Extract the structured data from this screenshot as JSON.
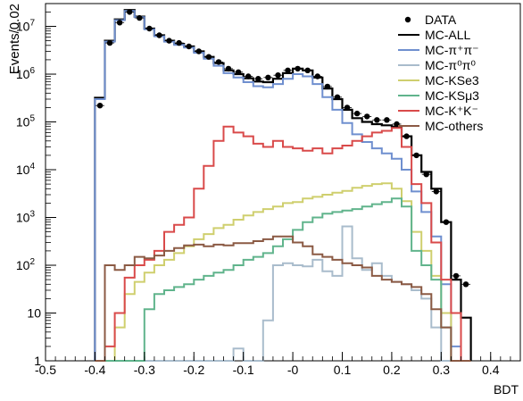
{
  "chart_data": {
    "type": "line",
    "xlabel": "BDT",
    "ylabel": "Events/0.02",
    "xlim": [
      -0.5,
      0.46
    ],
    "ylim": [
      1,
      30000000
    ],
    "yscale": "log",
    "grid": false,
    "legend_position": "top-right",
    "x_ticks": [
      {
        "v": -0.5,
        "label": "-0.5"
      },
      {
        "v": -0.4,
        "label": "-0.4"
      },
      {
        "v": -0.3,
        "label": "-0.3"
      },
      {
        "v": -0.2,
        "label": "-0.2"
      },
      {
        "v": -0.1,
        "label": "-0.1"
      },
      {
        "v": 0.0,
        "label": "-0"
      },
      {
        "v": 0.1,
        "label": "0.1"
      },
      {
        "v": 0.2,
        "label": "0.2"
      },
      {
        "v": 0.3,
        "label": "0.3"
      },
      {
        "v": 0.4,
        "label": "0.4"
      }
    ],
    "y_ticks": [
      {
        "v": 1,
        "base": "1",
        "exp": ""
      },
      {
        "v": 10,
        "base": "10",
        "exp": ""
      },
      {
        "v": 100,
        "base": "10",
        "exp": "2"
      },
      {
        "v": 1000,
        "base": "10",
        "exp": "3"
      },
      {
        "v": 10000,
        "base": "10",
        "exp": "4"
      },
      {
        "v": 100000,
        "base": "10",
        "exp": "5"
      },
      {
        "v": 1000000,
        "base": "10",
        "exp": "6"
      },
      {
        "v": 10000000,
        "base": "10",
        "exp": "7"
      }
    ],
    "bin_edges": [
      -0.4,
      -0.38,
      -0.36,
      -0.34,
      -0.32,
      -0.3,
      -0.28,
      -0.26,
      -0.24,
      -0.22,
      -0.2,
      -0.18,
      -0.16,
      -0.14,
      -0.12,
      -0.1,
      -0.08,
      -0.06,
      -0.04,
      -0.02,
      0.0,
      0.02,
      0.04,
      0.06,
      0.08,
      0.1,
      0.12,
      0.14,
      0.16,
      0.18,
      0.2,
      0.22,
      0.24,
      0.26,
      0.28,
      0.3,
      0.32,
      0.34,
      0.36
    ],
    "legend": [
      {
        "key": "DATA",
        "text": "DATA",
        "sup": [],
        "style": "marker",
        "color": "#000000"
      },
      {
        "key": "MC-ALL",
        "text": "MC-ALL",
        "sup": [],
        "style": "line",
        "color": "#000000"
      },
      {
        "key": "MC-pipi",
        "text": "MC-π⁺π⁻",
        "sup": [],
        "style": "line",
        "color": "#6f8fcf"
      },
      {
        "key": "MC-pi0pi0",
        "text": "MC-π⁰π⁰",
        "sup": [],
        "style": "line",
        "color": "#a9bccc"
      },
      {
        "key": "MC-KSe3",
        "text": "MC-KSe3",
        "sup": [],
        "style": "line",
        "color": "#cfcf6e"
      },
      {
        "key": "MC-KSmu3",
        "text": "MC-KSμ3",
        "sup": [],
        "style": "line",
        "color": "#60b48c"
      },
      {
        "key": "MC-KK",
        "text": "MC-K⁺K⁻",
        "sup": [],
        "style": "line",
        "color": "#d94a4a"
      },
      {
        "key": "MC-others",
        "text": "MC-others",
        "sup": [],
        "style": "line",
        "color": "#8b5a44"
      }
    ],
    "series": [
      {
        "key": "MC-ALL",
        "color": "#000000",
        "width": 2.2,
        "values": [
          320000,
          5000000,
          14000000,
          22000000,
          16000000,
          9000000,
          6500000,
          5000000,
          4300000,
          3800000,
          3000000,
          2300000,
          1700000,
          1200000,
          1000000,
          820000,
          700000,
          680000,
          800000,
          1050000,
          1300000,
          1200000,
          850000,
          500000,
          300000,
          180000,
          120000,
          100000,
          90000,
          85000,
          80000,
          50000,
          20000,
          9000,
          4000,
          800,
          50,
          8
        ]
      },
      {
        "key": "MC-pipi",
        "color": "#6f8fcf",
        "width": 2,
        "values": [
          300000,
          4800000,
          13500000,
          21000000,
          15500000,
          8700000,
          6200000,
          4800000,
          4100000,
          3600000,
          2800000,
          2100000,
          1500000,
          1050000,
          850000,
          680000,
          560000,
          530000,
          620000,
          800000,
          1000000,
          900000,
          620000,
          330000,
          180000,
          95000,
          55000,
          38000,
          28000,
          22000,
          17000,
          10000,
          3500,
          1300,
          400,
          40,
          2,
          1
        ]
      },
      {
        "key": "MC-pi0pi0",
        "color": "#a9bccc",
        "width": 2,
        "values": [
          0.5,
          0.5,
          0.5,
          0.5,
          0.5,
          0.5,
          0.5,
          0.5,
          0.5,
          0.5,
          0.5,
          0.5,
          0.5,
          0.5,
          1.8,
          0.5,
          0.5,
          7,
          100,
          110,
          100,
          95,
          130,
          75,
          60,
          650,
          140,
          80,
          110,
          60,
          45,
          40,
          30,
          20,
          5,
          0.5,
          0.5,
          0.5
        ]
      },
      {
        "key": "MC-KSe3",
        "color": "#cfcf6e",
        "width": 2,
        "values": [
          0.5,
          0.5,
          5,
          25,
          45,
          70,
          100,
          130,
          180,
          250,
          350,
          450,
          600,
          700,
          900,
          1100,
          1300,
          1500,
          1700,
          2000,
          2100,
          2500,
          2700,
          3000,
          3300,
          3600,
          4200,
          4600,
          5000,
          5200,
          4000,
          2200,
          500,
          200,
          60,
          10,
          1,
          0.5
        ]
      },
      {
        "key": "MC-KSmu3",
        "color": "#60b48c",
        "width": 2,
        "values": [
          0.5,
          0.5,
          0.5,
          0.5,
          0.5,
          12,
          25,
          30,
          35,
          40,
          50,
          60,
          70,
          80,
          100,
          130,
          150,
          180,
          250,
          350,
          550,
          800,
          1000,
          1200,
          1300,
          1400,
          1500,
          1700,
          1900,
          2100,
          2500,
          1700,
          200,
          100,
          50,
          5,
          0.5,
          0.5
        ]
      },
      {
        "key": "MC-KK",
        "color": "#d94a4a",
        "width": 2,
        "values": [
          0.5,
          2,
          10,
          55,
          100,
          130,
          200,
          500,
          700,
          1000,
          4000,
          12000,
          40000,
          80000,
          60000,
          50000,
          35000,
          30000,
          40000,
          30000,
          28000,
          25000,
          28000,
          22000,
          28000,
          32000,
          40000,
          50000,
          60000,
          65000,
          75000,
          30000,
          5000,
          2000,
          300,
          50,
          10,
          1
        ]
      },
      {
        "key": "MC-others",
        "color": "#8b5a44",
        "width": 2,
        "values": [
          0.5,
          100,
          80,
          100,
          150,
          140,
          160,
          200,
          230,
          260,
          270,
          250,
          270,
          260,
          290,
          290,
          320,
          350,
          400,
          400,
          300,
          250,
          170,
          150,
          130,
          110,
          100,
          90,
          60,
          50,
          45,
          40,
          35,
          25,
          12,
          5,
          1,
          0.5
        ]
      }
    ],
    "data_points": [
      {
        "x": -0.39,
        "y": 220000
      },
      {
        "x": -0.37,
        "y": 4500000
      },
      {
        "x": -0.35,
        "y": 12000000
      },
      {
        "x": -0.33,
        "y": 20000000
      },
      {
        "x": -0.31,
        "y": 15000000
      },
      {
        "x": -0.29,
        "y": 9000000
      },
      {
        "x": -0.27,
        "y": 6500000
      },
      {
        "x": -0.25,
        "y": 5000000
      },
      {
        "x": -0.23,
        "y": 4500000
      },
      {
        "x": -0.21,
        "y": 3800000
      },
      {
        "x": -0.19,
        "y": 3000000
      },
      {
        "x": -0.17,
        "y": 2300000
      },
      {
        "x": -0.15,
        "y": 1800000
      },
      {
        "x": -0.13,
        "y": 1300000
      },
      {
        "x": -0.11,
        "y": 1100000
      },
      {
        "x": -0.09,
        "y": 900000
      },
      {
        "x": -0.07,
        "y": 800000
      },
      {
        "x": -0.05,
        "y": 850000
      },
      {
        "x": -0.03,
        "y": 950000
      },
      {
        "x": -0.01,
        "y": 1200000
      },
      {
        "x": 0.01,
        "y": 1300000
      },
      {
        "x": 0.03,
        "y": 1200000
      },
      {
        "x": 0.05,
        "y": 900000
      },
      {
        "x": 0.07,
        "y": 550000
      },
      {
        "x": 0.09,
        "y": 330000
      },
      {
        "x": 0.11,
        "y": 200000
      },
      {
        "x": 0.13,
        "y": 150000
      },
      {
        "x": 0.15,
        "y": 130000
      },
      {
        "x": 0.17,
        "y": 110000
      },
      {
        "x": 0.19,
        "y": 110000
      },
      {
        "x": 0.21,
        "y": 90000
      },
      {
        "x": 0.23,
        "y": 50000
      },
      {
        "x": 0.25,
        "y": 20000
      },
      {
        "x": 0.27,
        "y": 8000
      },
      {
        "x": 0.29,
        "y": 3500
      },
      {
        "x": 0.31,
        "y": 800
      },
      {
        "x": 0.33,
        "y": 60
      },
      {
        "x": 0.35,
        "y": 40
      }
    ]
  }
}
